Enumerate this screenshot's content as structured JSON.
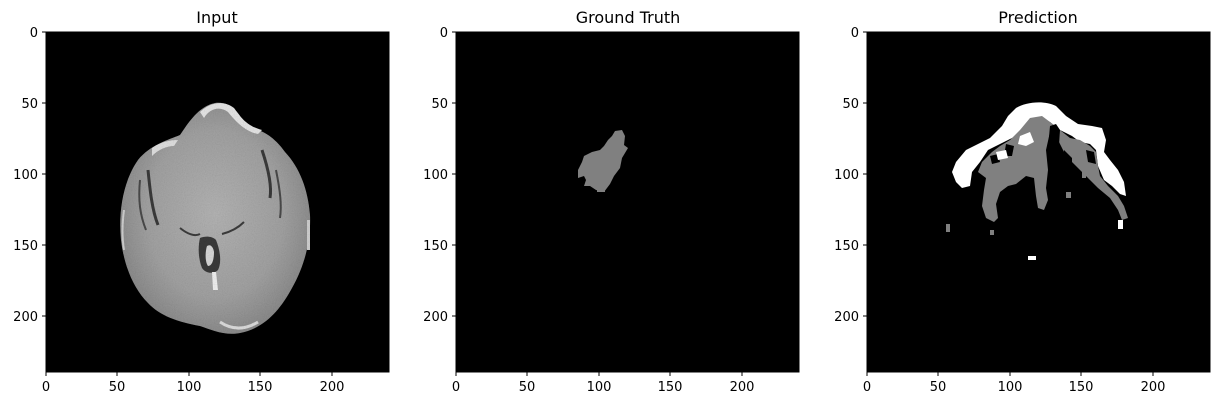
{
  "figure": {
    "background": "#ffffff",
    "panels": [
      {
        "title": "Input",
        "kind": "mri-slice",
        "xticks": [
          "0",
          "50",
          "100",
          "150",
          "200"
        ],
        "yticks": [
          "0",
          "50",
          "100",
          "150",
          "200"
        ],
        "xlim": [
          0,
          240
        ],
        "ylim": [
          240,
          0
        ]
      },
      {
        "title": "Ground Truth",
        "kind": "segmentation-mask",
        "xticks": [
          "0",
          "50",
          "100",
          "150",
          "200"
        ],
        "yticks": [
          "0",
          "50",
          "100",
          "150",
          "200"
        ],
        "xlim": [
          0,
          240
        ],
        "ylim": [
          240,
          0
        ]
      },
      {
        "title": "Prediction",
        "kind": "segmentation-mask",
        "xticks": [
          "0",
          "50",
          "100",
          "150",
          "200"
        ],
        "yticks": [
          "0",
          "50",
          "100",
          "150",
          "200"
        ],
        "xlim": [
          0,
          240
        ],
        "ylim": [
          240,
          0
        ]
      }
    ],
    "colors": {
      "image_background": "#000000",
      "mask_gray": "#808080",
      "mask_white": "#ffffff",
      "brain_tissue": "#a8a8a8"
    }
  }
}
